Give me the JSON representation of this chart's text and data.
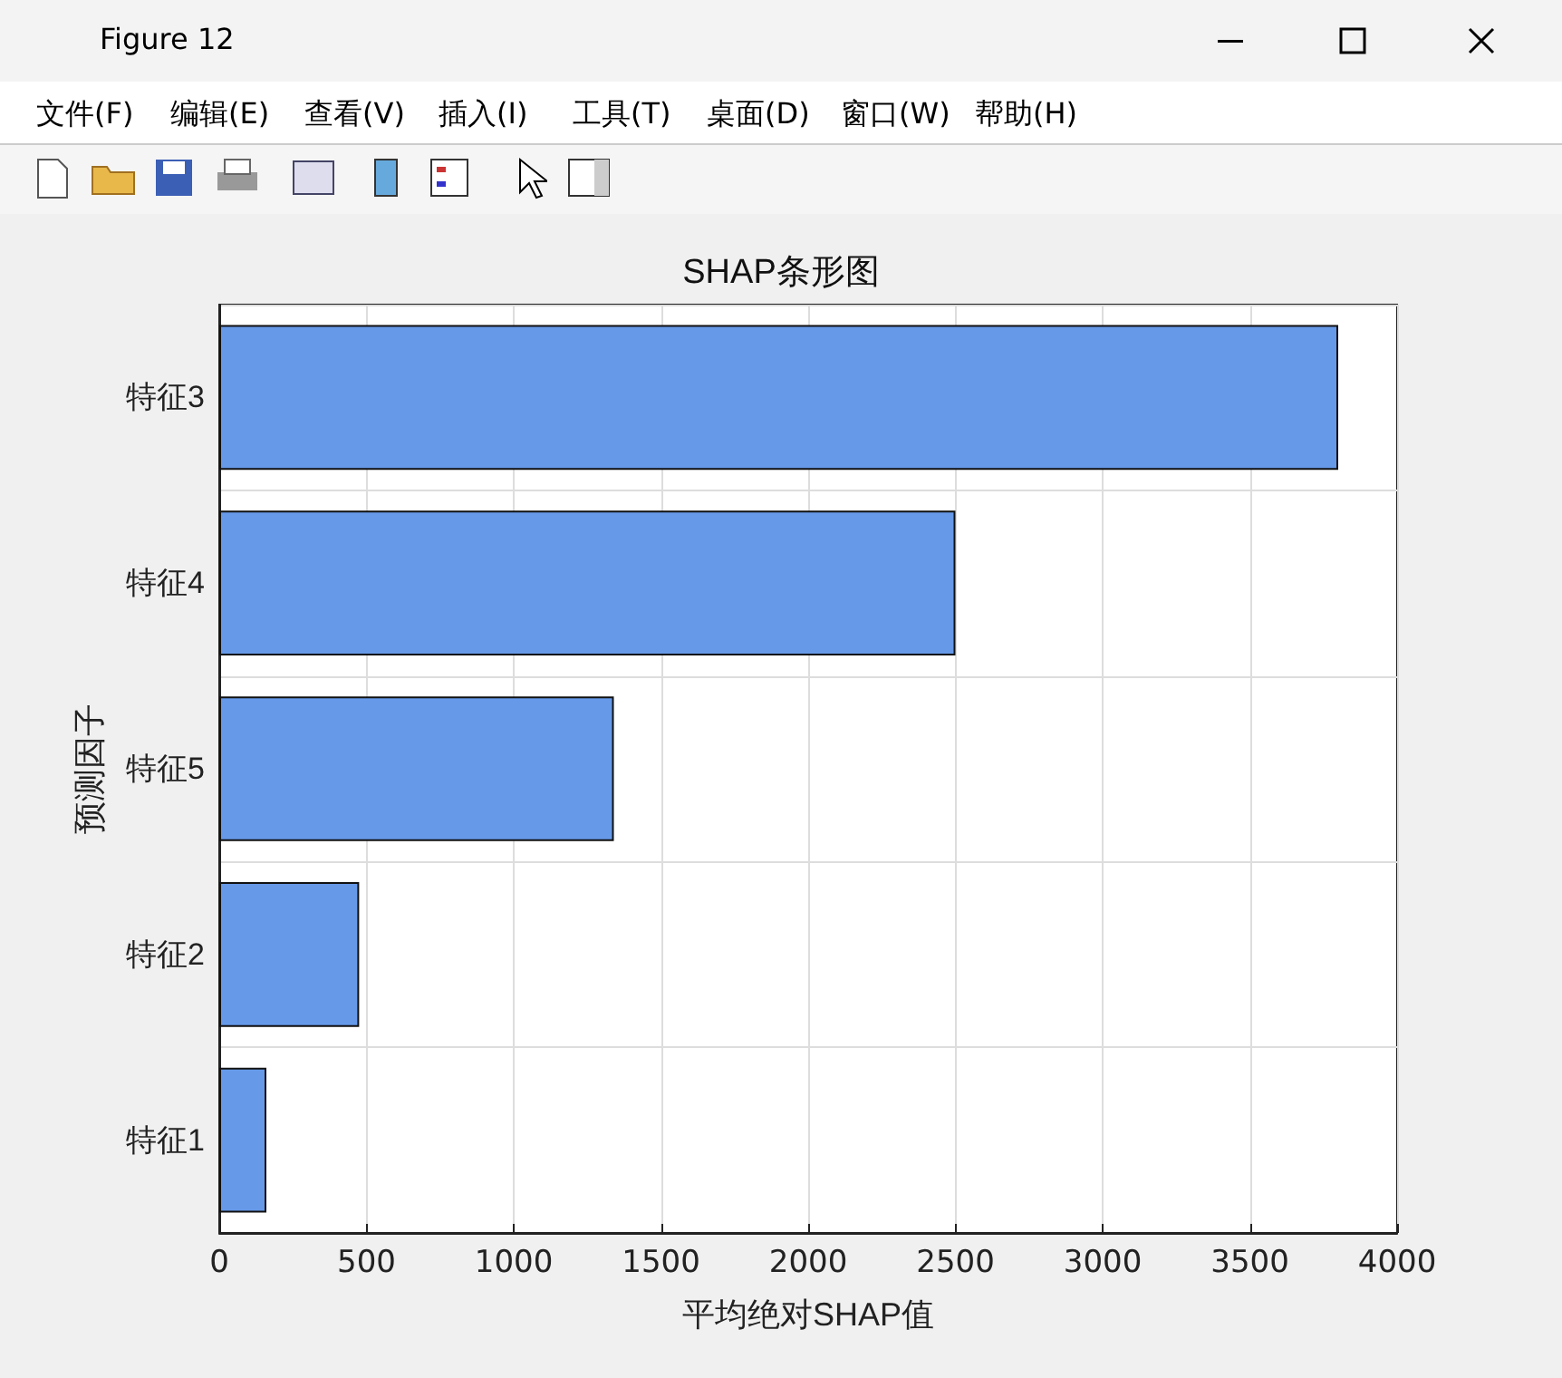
{
  "chart_data": {
    "type": "bar",
    "orientation": "horizontal",
    "title": "SHAP条形图",
    "xlabel": "平均绝对SHAP值",
    "ylabel": "预测因子",
    "categories": [
      "特征3",
      "特征4",
      "特征5",
      "特征2",
      "特征1"
    ],
    "values": [
      3800,
      2500,
      1340,
      475,
      160
    ],
    "color": "#6699e8",
    "xlim": [
      0,
      4000
    ],
    "xticks": [
      0,
      500,
      1000,
      1500,
      2000,
      2500,
      3000,
      3500,
      4000
    ],
    "grid": true,
    "annotations": [
      "Figure 12",
      "文件(F)",
      "编辑(E)",
      "查看(V)",
      "插入(I)",
      "工具(T)",
      "桌面(D)",
      "窗口(W)",
      "帮助(H)"
    ]
  }
}
